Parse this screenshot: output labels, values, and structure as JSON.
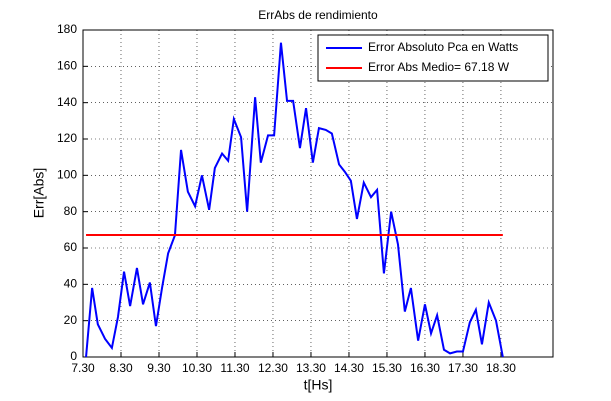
{
  "chart_data": {
    "type": "line",
    "title": "ErrAbs de rendimiento",
    "xlabel": "t[Hs]",
    "ylabel": "Err[Abs]",
    "xlim": [
      7.5,
      19.87
    ],
    "ylim": [
      0,
      180
    ],
    "xticks": [
      {
        "value": 7.5,
        "label": "7.30"
      },
      {
        "value": 8.5,
        "label": "8.30"
      },
      {
        "value": 9.5,
        "label": "9.30"
      },
      {
        "value": 10.5,
        "label": "10.30"
      },
      {
        "value": 11.5,
        "label": "11.30"
      },
      {
        "value": 12.5,
        "label": "12.30"
      },
      {
        "value": 13.5,
        "label": "13.30"
      },
      {
        "value": 14.5,
        "label": "14.30"
      },
      {
        "value": 15.5,
        "label": "15.30"
      },
      {
        "value": 16.5,
        "label": "16.30"
      },
      {
        "value": 17.5,
        "label": "17.30"
      },
      {
        "value": 18.5,
        "label": "18.30"
      }
    ],
    "yticks": [
      0,
      20,
      40,
      60,
      80,
      100,
      120,
      140,
      160,
      180
    ],
    "grid": true,
    "legend": "upper right",
    "series": [
      {
        "name": "Error Absoluto Pca en Watts",
        "color": "#0000ff",
        "x": [
          7.58,
          7.74,
          7.89,
          8.08,
          8.26,
          8.42,
          8.58,
          8.74,
          8.92,
          9.08,
          9.26,
          9.42,
          9.58,
          9.74,
          9.92,
          10.08,
          10.26,
          10.45,
          10.63,
          10.82,
          10.97,
          11.16,
          11.32,
          11.47,
          11.66,
          11.82,
          12.03,
          12.18,
          12.37,
          12.53,
          12.71,
          12.87,
          13.03,
          13.21,
          13.37,
          13.55,
          13.71,
          13.89,
          14.05,
          14.24,
          14.39,
          14.55,
          14.71,
          14.89,
          15.08,
          15.24,
          15.42,
          15.61,
          15.79,
          15.97,
          16.13,
          16.32,
          16.5,
          16.66,
          16.82,
          17.0,
          17.16,
          17.34,
          17.5,
          17.68,
          17.84,
          18.0,
          18.18,
          18.37,
          18.55
        ],
        "values": [
          0,
          38,
          18,
          10,
          5,
          22,
          47,
          28,
          49,
          29,
          41,
          17,
          38,
          57,
          67,
          114,
          91,
          83,
          100,
          81,
          104,
          112,
          108,
          131,
          121,
          80,
          143,
          107,
          122,
          122,
          173,
          141,
          141,
          115,
          137,
          107,
          126,
          125,
          123,
          106,
          102,
          97,
          76,
          96,
          88,
          92,
          46,
          80,
          62,
          25,
          38,
          9,
          29,
          13,
          23,
          4,
          2,
          3,
          3,
          19,
          26,
          7,
          30,
          20,
          0
        ]
      },
      {
        "name": "Error Abs Medio= 67.18 W",
        "color": "#ff0000",
        "x": [
          7.58,
          18.55
        ],
        "values": [
          67.18,
          67.18
        ]
      }
    ]
  }
}
